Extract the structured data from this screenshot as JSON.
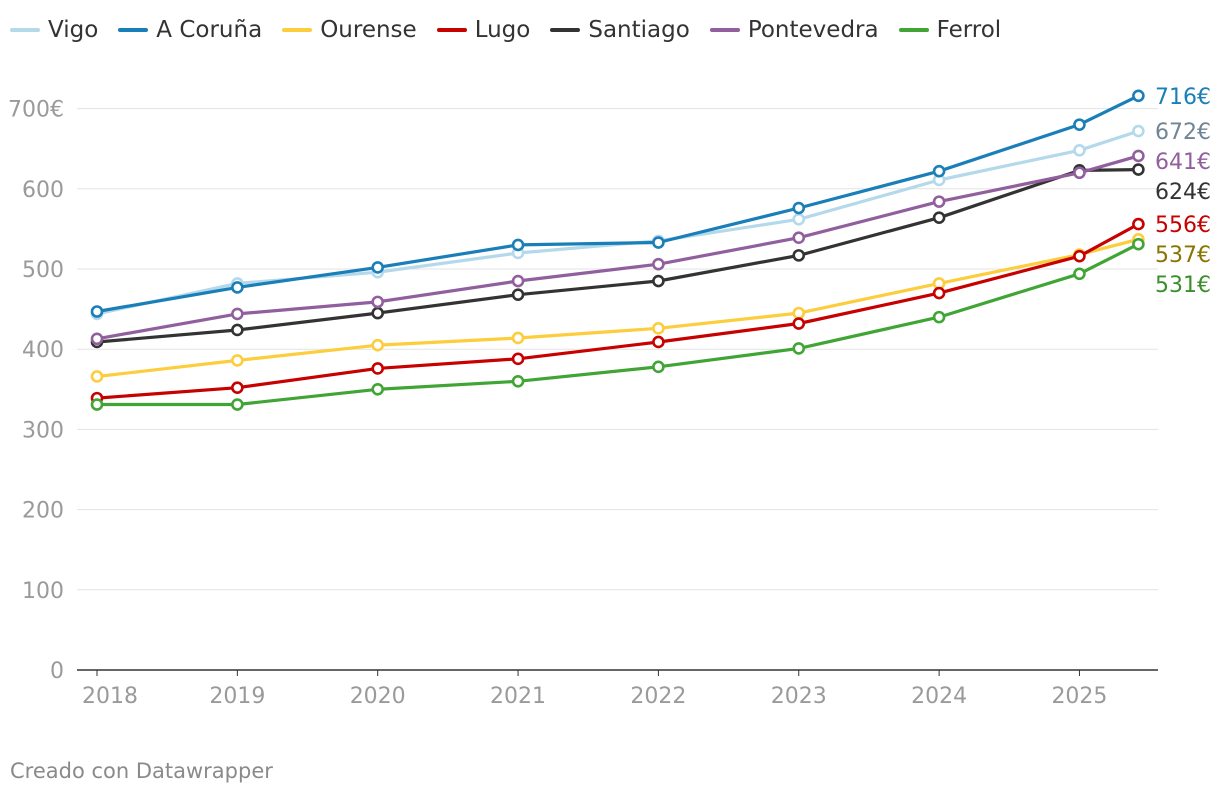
{
  "chart_data": {
    "type": "line",
    "x": [
      2018,
      2019,
      2020,
      2021,
      2022,
      2023,
      2024,
      2025,
      2025.42
    ],
    "x_tick_labels": [
      "2018",
      "2019",
      "2020",
      "2021",
      "2022",
      "2023",
      "2024",
      "2025"
    ],
    "ylim": [
      0,
      740
    ],
    "y_ticks": [
      0,
      100,
      200,
      300,
      400,
      500,
      600,
      700
    ],
    "y_tick_labels": [
      "0",
      "100",
      "200",
      "300",
      "400",
      "500",
      "600",
      "700€"
    ],
    "grid": true,
    "legend_position": "top-left",
    "series": [
      {
        "name": "Vigo",
        "color": "#b3d9ea",
        "label_color": "#6f8596",
        "end_label": "672€",
        "values": [
          444,
          482,
          496,
          520,
          535,
          562,
          611,
          648,
          672
        ]
      },
      {
        "name": "A Coruña",
        "color": "#1a7fb8",
        "label_color": "#1a7fb8",
        "end_label": "716€",
        "values": [
          447,
          477,
          502,
          530,
          533,
          576,
          622,
          680,
          716
        ]
      },
      {
        "name": "Ourense",
        "color": "#fccd3c",
        "label_color": "#8a7400",
        "end_label": "537€",
        "values": [
          366,
          386,
          405,
          414,
          426,
          445,
          482,
          518,
          537
        ]
      },
      {
        "name": "Lugo",
        "color": "#c70000",
        "label_color": "#c70000",
        "end_label": "556€",
        "values": [
          339,
          352,
          376,
          388,
          409,
          432,
          470,
          516,
          556
        ]
      },
      {
        "name": "Santiago",
        "color": "#333333",
        "label_color": "#333333",
        "end_label": "624€",
        "values": [
          409,
          424,
          445,
          468,
          485,
          517,
          564,
          623,
          624
        ]
      },
      {
        "name": "Pontevedra",
        "color": "#915f9e",
        "label_color": "#915f9e",
        "end_label": "641€",
        "values": [
          413,
          444,
          459,
          485,
          506,
          539,
          584,
          620,
          641
        ]
      },
      {
        "name": "Ferrol",
        "color": "#40a535",
        "label_color": "#3a8f2c",
        "end_label": "531€",
        "values": [
          331,
          331,
          350,
          360,
          378,
          401,
          440,
          494,
          531
        ]
      }
    ]
  },
  "footer": {
    "credit": "Creado con Datawrapper"
  }
}
